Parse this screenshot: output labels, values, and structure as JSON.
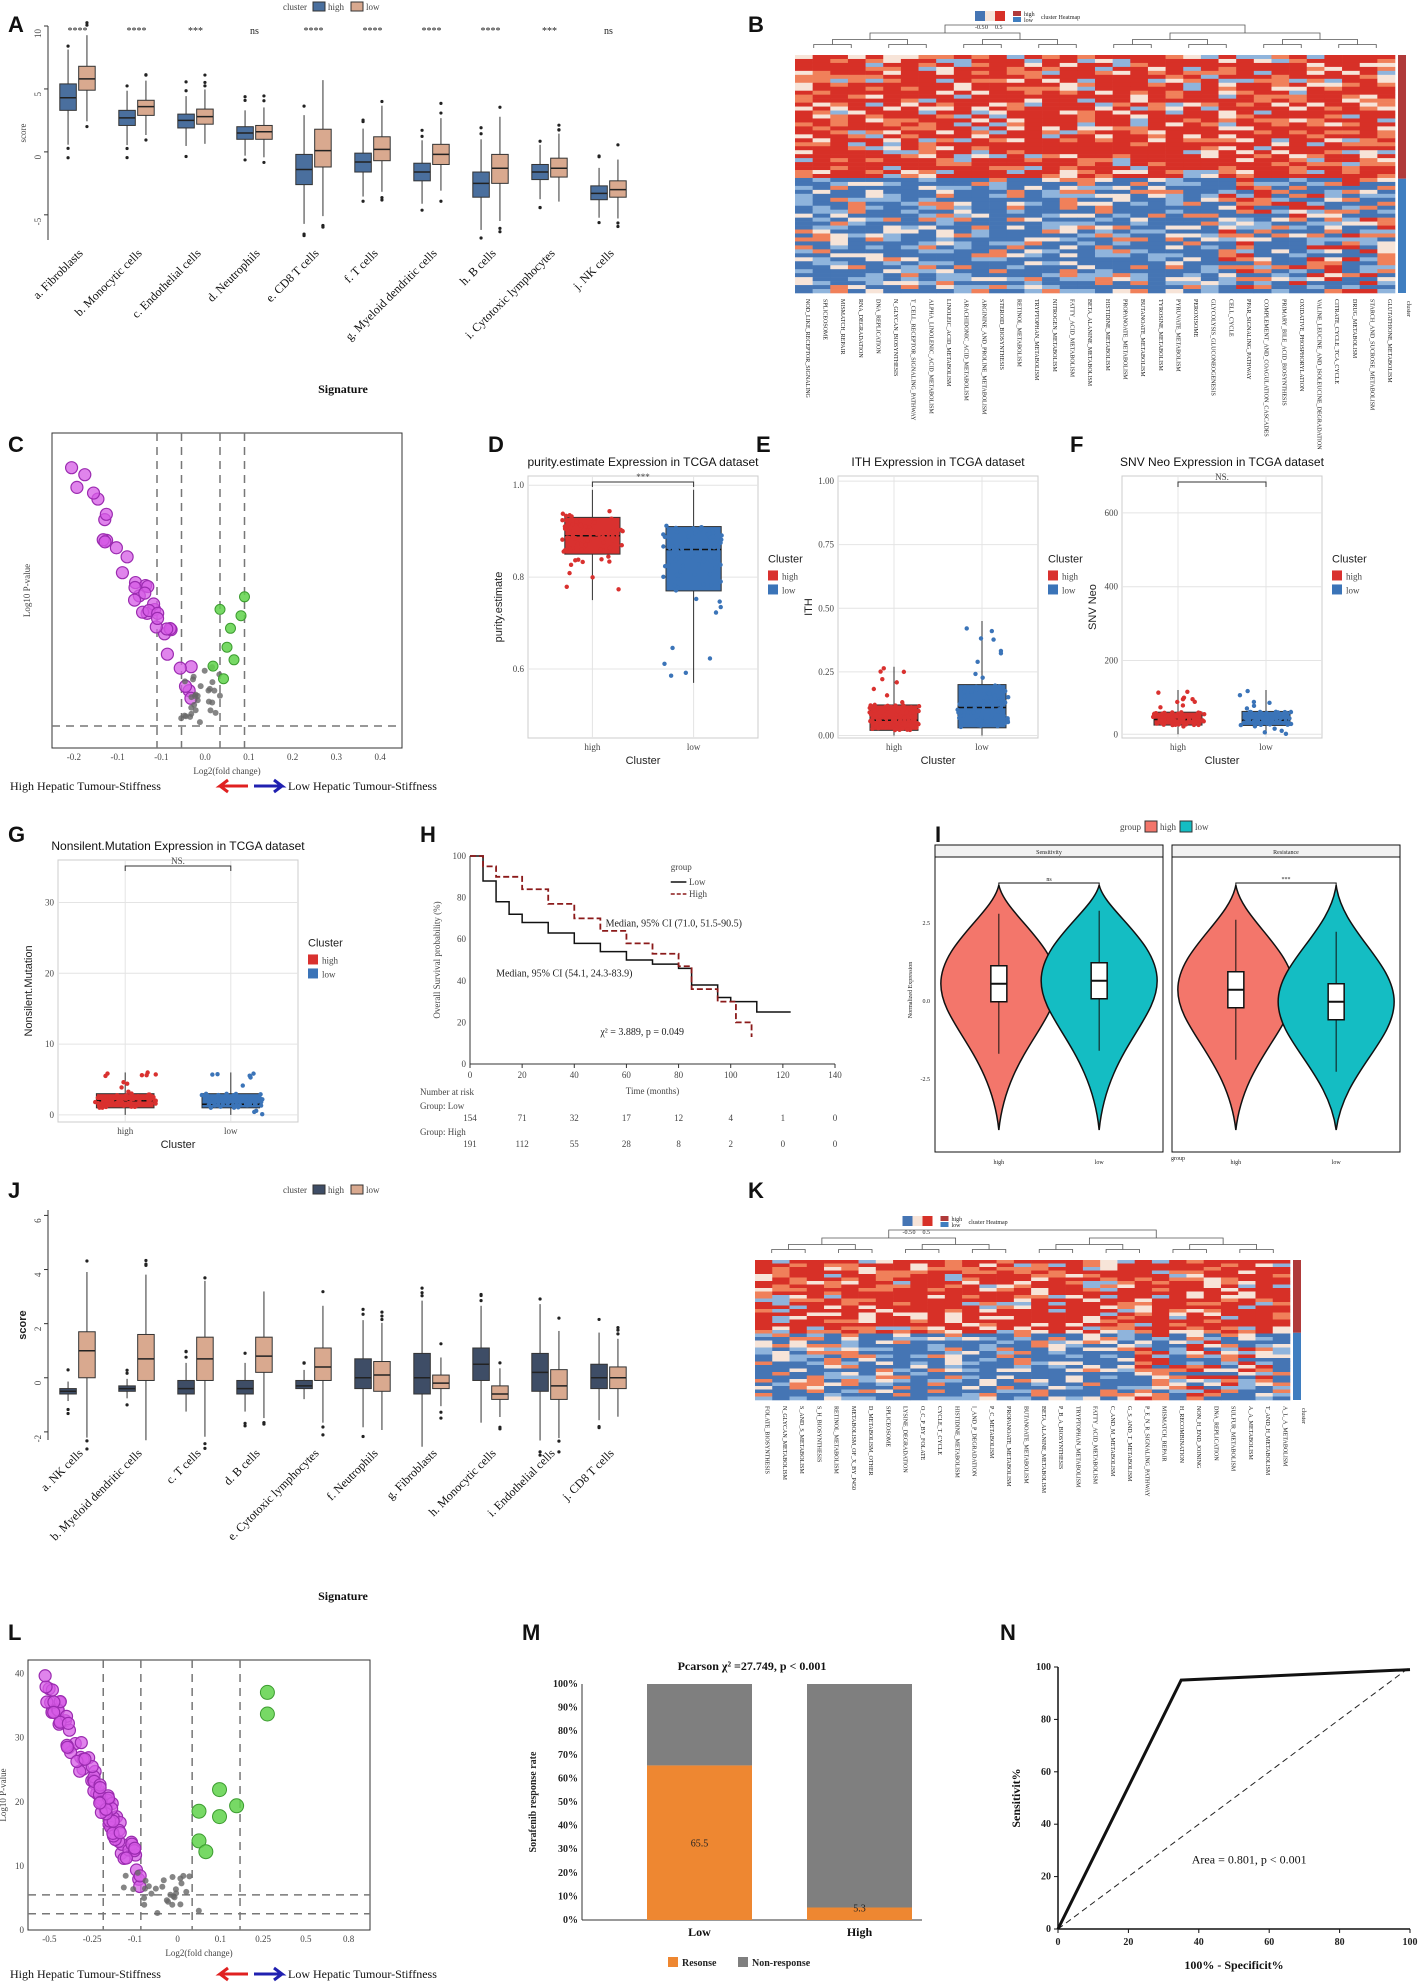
{
  "colors": {
    "high_box": "#4a6f9e",
    "low_box": "#d9a98f",
    "tcga_high": "#d9312f",
    "tcga_low": "#3b74b8",
    "violin_high": "#f3766b",
    "violin_low": "#14bdc3",
    "magenta": "#d65be6",
    "magenta_edge": "#9b2bb0",
    "green": "#5fd24a",
    "grey": "#777777",
    "bar_resp": "#ee8731",
    "bar_non": "#7f7f7f",
    "km_low": "#111111",
    "km_high": "#8b1a1a",
    "j_high": "#3e4d66",
    "j_low": "#d9a98f"
  },
  "panel_labels": [
    "A",
    "B",
    "C",
    "D",
    "E",
    "F",
    "G",
    "H",
    "I",
    "J",
    "K",
    "L",
    "M",
    "N"
  ],
  "chart_data": [
    {
      "id": "A",
      "type": "box",
      "legend_title": "cluster",
      "legend": [
        "high",
        "low"
      ],
      "ylabel": "score",
      "xlabel": "Signature",
      "ylim": [
        -7,
        10
      ],
      "yticks": [
        "-5",
        "0",
        "5",
        "10"
      ],
      "categories": [
        "a. Fibroblasts",
        "b. Monocytic cells",
        "c. Endothelial cells",
        "d. Neutrophils",
        "e. CD8 T cells",
        "f. T cells",
        "g. Myeloid dendritic cells",
        "h. B cells",
        "i. Cytotoxic lymphocytes",
        "j. NK cells"
      ],
      "significance": [
        "****",
        "****",
        "***",
        "ns",
        "****",
        "****",
        "****",
        "****",
        "***",
        "ns"
      ],
      "series": [
        {
          "name": "high",
          "medians": [
            4.3,
            2.7,
            2.5,
            1.5,
            -1.4,
            -0.8,
            -1.6,
            -2.5,
            -1.6,
            -3.3
          ],
          "q1": [
            3.3,
            2.1,
            1.9,
            1.0,
            -2.6,
            -1.6,
            -2.3,
            -3.6,
            -2.2,
            -3.8
          ],
          "q3": [
            5.4,
            3.3,
            3.0,
            2.0,
            -0.2,
            -0.1,
            -0.9,
            -1.6,
            -1.0,
            -2.7
          ]
        },
        {
          "name": "low",
          "medians": [
            5.8,
            3.6,
            2.8,
            1.6,
            0.1,
            0.2,
            -0.2,
            -1.3,
            -1.3,
            -3.0
          ],
          "q1": [
            4.9,
            2.9,
            2.2,
            1.0,
            -1.2,
            -0.7,
            -1.0,
            -2.5,
            -2.0,
            -3.6
          ],
          "q3": [
            6.8,
            4.1,
            3.4,
            2.1,
            1.8,
            1.2,
            0.6,
            -0.2,
            -0.5,
            -2.3
          ]
        }
      ]
    },
    {
      "id": "B",
      "type": "heatmap",
      "legend_labels": [
        "-0.5",
        "0",
        "0.5"
      ],
      "legend_title": "cluster Heatmap",
      "annotation_label": "cluster",
      "annotation_levels": [
        "high",
        "low"
      ],
      "row_labels": [
        "NOD_LIKE_RECEPTOR_SIGNALING",
        "SPLICEOSOME",
        "MISMATCH_REPAIR",
        "RNA_DEGRADATION",
        "DNA_REPLICATION",
        "N_GLYCAN_BIOSYNTHESIS",
        "T_CELL_RECEPTOR_SIGNALING_PATHWAY",
        "ALPHA_LINOLENIC_ACID_METABOLISM",
        "LINOLEIC_ACID_METABOLISM",
        "ARACHIDONIC_ACID_METABOLISM",
        "ARGININE_AND_PROLINE_METABOLISM",
        "STEROID_BIOSYNTHESIS",
        "RETINOL_METABOLISM",
        "TRYPTOPHAN_METABOLISM",
        "NITROGEN_METABOLISM",
        "FATTY_ACID_METABOLISM",
        "BETA_ALANINE_METABOLISM",
        "HISTIDINE_METABOLISM",
        "PROPANOATE_METABOLISM",
        "BUTANOATE_METABOLISM",
        "TYROSINE_METABOLISM",
        "PYRUVATE_METABOLISM",
        "PEROXISOME",
        "GLYCOLYSIS_GLUCONEOGENESIS",
        "CELL_CYCLE",
        "PPAR_SIGNALING_PATHWAY",
        "COMPLEMENT_AND_COAGULATION_CASCADES",
        "PRIMARY_BILE_ACID_BIOSYNTHESIS",
        "OXIDATIVE_PHOSPHORYLATION",
        "VALINE_LEUCINE_AND_ISOLEUCINE_DEGRADATION",
        "CITRATE_CYCLE_TCA_CYCLE",
        "DRUG_METABOLISM",
        "STARCH_AND_SUCROSE_METABOLISM",
        "GLUTATHIONE_METABOLISM"
      ]
    },
    {
      "id": "C",
      "type": "scatter",
      "xlabel": "Log2(fold change)",
      "ylabel": "Log10 P-value",
      "xticks": [
        "-0.2",
        "-0.1",
        "-0.1",
        "0.0",
        "0.1",
        "0.2",
        "0.3",
        "0.4"
      ],
      "legend": [
        "High Hepatic Tumour-Stiffness",
        "Low Hepatic Tumour-Stiffness"
      ]
    },
    {
      "id": "D",
      "type": "box_jitter",
      "title": "purity.estimate Expression in TCGA dataset",
      "ylabel": "purity.estimate",
      "xlabel": "Cluster",
      "categories": [
        "high",
        "low"
      ],
      "ylim": [
        0.45,
        1.02
      ],
      "yticks": [
        "0.6",
        "0.8",
        "1.0"
      ],
      "sig": "***",
      "legend_title": "Cluster",
      "legend": [
        "high",
        "low"
      ],
      "medians": [
        0.89,
        0.86
      ],
      "q1": [
        0.85,
        0.77
      ],
      "q3": [
        0.93,
        0.91
      ],
      "whisk_lo": [
        0.75,
        0.57
      ],
      "whisk_hi": [
        0.99,
        0.99
      ]
    },
    {
      "id": "E",
      "type": "box_jitter",
      "title": "ITH Expression in TCGA dataset",
      "ylabel": "ITH",
      "xlabel": "Cluster",
      "categories": [
        "high",
        "low"
      ],
      "ylim": [
        -0.01,
        1.02
      ],
      "yticks": [
        "0.00",
        "0.25",
        "0.50",
        "0.75",
        "1.00"
      ],
      "sig": "",
      "legend_title": "Cluster",
      "legend": [
        "high",
        "low"
      ],
      "medians": [
        0.06,
        0.11
      ],
      "q1": [
        0.02,
        0.03
      ],
      "q3": [
        0.12,
        0.2
      ],
      "whisk_lo": [
        0.0,
        0.0
      ],
      "whisk_hi": [
        0.27,
        0.45
      ]
    },
    {
      "id": "F",
      "type": "box_jitter",
      "title": "SNV Neo Expression in TCGA dataset",
      "ylabel": "SNV Neo",
      "xlabel": "Cluster",
      "categories": [
        "high",
        "low"
      ],
      "ylim": [
        -10,
        700
      ],
      "yticks": [
        "0",
        "200",
        "400",
        "600"
      ],
      "sig": "NS.",
      "legend_title": "Cluster",
      "legend": [
        "high",
        "low"
      ],
      "medians": [
        40,
        38
      ],
      "q1": [
        25,
        24
      ],
      "q3": [
        60,
        62
      ],
      "whisk_lo": [
        0,
        0
      ],
      "whisk_hi": [
        120,
        120
      ]
    },
    {
      "id": "G",
      "type": "box_jitter",
      "title": "Nonsilent.Mutation Expression in TCGA dataset",
      "ylabel": "Nonsilent.Mutation",
      "xlabel": "Cluster",
      "categories": [
        "high",
        "low"
      ],
      "ylim": [
        -1,
        36
      ],
      "yticks": [
        "0",
        "10",
        "20",
        "30"
      ],
      "sig": "NS.",
      "legend_title": "Cluster",
      "legend": [
        "high",
        "low"
      ],
      "medians": [
        2,
        1.5
      ],
      "q1": [
        1,
        1
      ],
      "q3": [
        3,
        3
      ],
      "whisk_lo": [
        0,
        0
      ],
      "whisk_hi": [
        6,
        6
      ]
    },
    {
      "id": "H",
      "type": "survival",
      "ylabel": "Overall Survival probability (%)",
      "xlabel": "Time (months)",
      "xticks": [
        "0",
        "20",
        "40",
        "60",
        "80",
        "100",
        "120",
        "140"
      ],
      "yticks": [
        "0",
        "20",
        "40",
        "60",
        "80",
        "100"
      ],
      "legend_title": "group",
      "legend": [
        "Low",
        "High"
      ],
      "annot_high": "Median, 95% CI (71.0, 51.5-90.5)",
      "annot_low": "Median, 95% CI (54.1, 24.3-83.9)",
      "stat": "χ² = 3.889, p = 0.049",
      "risk_title": "Number at risk",
      "risk": [
        {
          "label": "Group: Low",
          "values": [
            "154",
            "71",
            "32",
            "17",
            "12",
            "4",
            "1",
            "0"
          ]
        },
        {
          "label": "Group: High",
          "values": [
            "191",
            "112",
            "55",
            "28",
            "8",
            "2",
            "0",
            "0"
          ]
        }
      ]
    },
    {
      "id": "I",
      "type": "violin",
      "legend_title": "group",
      "legend": [
        "high",
        "low"
      ],
      "facets": [
        "Sensitivity",
        "Resistance"
      ],
      "facet_sig": [
        "ns",
        "***"
      ],
      "ylabel": "Normalized Expression",
      "xlabel": "group",
      "yticks": [
        "2.5",
        "0.0",
        "-2.5"
      ],
      "categories": [
        "high",
        "low"
      ]
    },
    {
      "id": "J",
      "type": "box",
      "legend_title": "cluster",
      "legend": [
        "high",
        "low"
      ],
      "ylabel": "score",
      "xlabel": "Signature",
      "ylim": [
        -2.3,
        6.2
      ],
      "yticks": [
        "-2",
        "0",
        "2",
        "4",
        "6"
      ],
      "categories": [
        "a. NK cells",
        "b. Myeloid dendritic cells",
        "c. T cells",
        "d. B cells",
        "e. Cytotoxic lymphocytes",
        "f. Neutrophils",
        "g. Fibroblasts",
        "h. Monocytic cells",
        "i. Endothelial cells",
        "j. CD8 T cells"
      ],
      "series": [
        {
          "name": "high",
          "medians": [
            -0.5,
            -0.4,
            -0.4,
            -0.4,
            -0.3,
            0.0,
            0.0,
            0.5,
            0.2,
            0.0
          ],
          "q1": [
            -0.6,
            -0.5,
            -0.6,
            -0.6,
            -0.4,
            -0.4,
            -0.6,
            -0.1,
            -0.5,
            -0.4
          ],
          "q3": [
            -0.4,
            -0.3,
            -0.1,
            -0.1,
            -0.1,
            0.7,
            0.9,
            1.1,
            0.9,
            0.5
          ]
        },
        {
          "name": "low",
          "medians": [
            1.0,
            0.7,
            0.7,
            0.8,
            0.4,
            0.1,
            -0.2,
            -0.6,
            -0.3,
            0.0
          ],
          "q1": [
            0.0,
            -0.1,
            -0.1,
            0.2,
            -0.1,
            -0.5,
            -0.4,
            -0.8,
            -0.8,
            -0.4
          ],
          "q3": [
            1.7,
            1.6,
            1.5,
            1.5,
            1.1,
            0.6,
            0.1,
            -0.3,
            0.3,
            0.4
          ]
        }
      ]
    },
    {
      "id": "K",
      "type": "heatmap",
      "legend_labels": [
        "-0.5",
        "0",
        "0.5"
      ],
      "legend_title": "cluster Heatmap",
      "annotation_label": "cluster",
      "annotation_levels": [
        "high",
        "low"
      ],
      "row_labels": [
        "FOLATE_BIOSYNTHESIS",
        "N_GLYCAN_METABOLISM",
        "S_AND_S_METABOLISM",
        "S_H_BIOSYNTHESIS",
        "RETINOL_METABOLISM",
        "METABOLISM_OF_X_BY_P450",
        "D_METABOLISM_OTHER",
        "SPLICEOSOME",
        "LYSINE_DEGRADATION",
        "O_C_P_BY_FOLATE",
        "CYCLE_T_CYCLE",
        "HISTIDINE_METABOLISM",
        "I_AND_P_DEGRADATION",
        "P_C_METABOLISM",
        "PROPANOATE_METABOLISM",
        "BUTANOATE_METABOLISM",
        "BETA_ALANINE_METABOLISM",
        "P_B_A_BIOSYNTHESIS",
        "TRYPTOPHAN_METABOLISM",
        "FATTY_ACID_METABOLISM",
        "C_AND_M_METABOLISM",
        "G_S_AND_T_METABOLISM",
        "P_E_N_R_SIGNALING_PATHWAY",
        "MISMATCH_REPAIR",
        "H_RECOMBINATION",
        "NON_H_END_JOINING",
        "DNA_REPLICATION",
        "SULFUR_METABOLISM",
        "A_A_METABOLISM",
        "T_AND_H_METABOLISM",
        "A_L_A_METABOLISM"
      ]
    },
    {
      "id": "L",
      "type": "scatter",
      "xlabel": "Log2(fold change)",
      "ylabel": "Log10 P-value",
      "xticks": [
        "-0.5",
        "-0.25",
        "-0.1",
        "0",
        "0.1",
        "0.25",
        "0.5",
        "0.8"
      ],
      "yticks": [
        "0",
        "10",
        "20",
        "30",
        "40"
      ],
      "legend": [
        "High Hepatic Tumour-Stiffness",
        "Low Hepatic Tumour-Stiffness"
      ]
    },
    {
      "id": "M",
      "type": "stacked_bar",
      "title": "Pcarson χ² =27.749, p < 0.001",
      "ylabel": "Sorafenib response rate",
      "categories": [
        "Low",
        "High"
      ],
      "series": [
        {
          "name": "Resonse",
          "values": [
            65.5,
            5.3
          ]
        },
        {
          "name": "Non-response",
          "values": [
            34.5,
            94.7
          ]
        }
      ],
      "data_labels": [
        "65.5",
        "5.3"
      ],
      "yticks": [
        "0%",
        "10%",
        "20%",
        "30%",
        "40%",
        "50%",
        "60%",
        "70%",
        "80%",
        "90%",
        "100%"
      ]
    },
    {
      "id": "N",
      "type": "line",
      "xlabel": "100% -   Specificit%",
      "ylabel": "Sensitivit%",
      "x": [
        0,
        35,
        100
      ],
      "y": [
        0,
        95,
        99
      ],
      "xticks": [
        "0",
        "20",
        "40",
        "60",
        "80",
        "100"
      ],
      "yticks": [
        "0",
        "20",
        "40",
        "60",
        "80",
        "100"
      ],
      "annotation": "Area = 0.801, p < 0.001"
    }
  ]
}
